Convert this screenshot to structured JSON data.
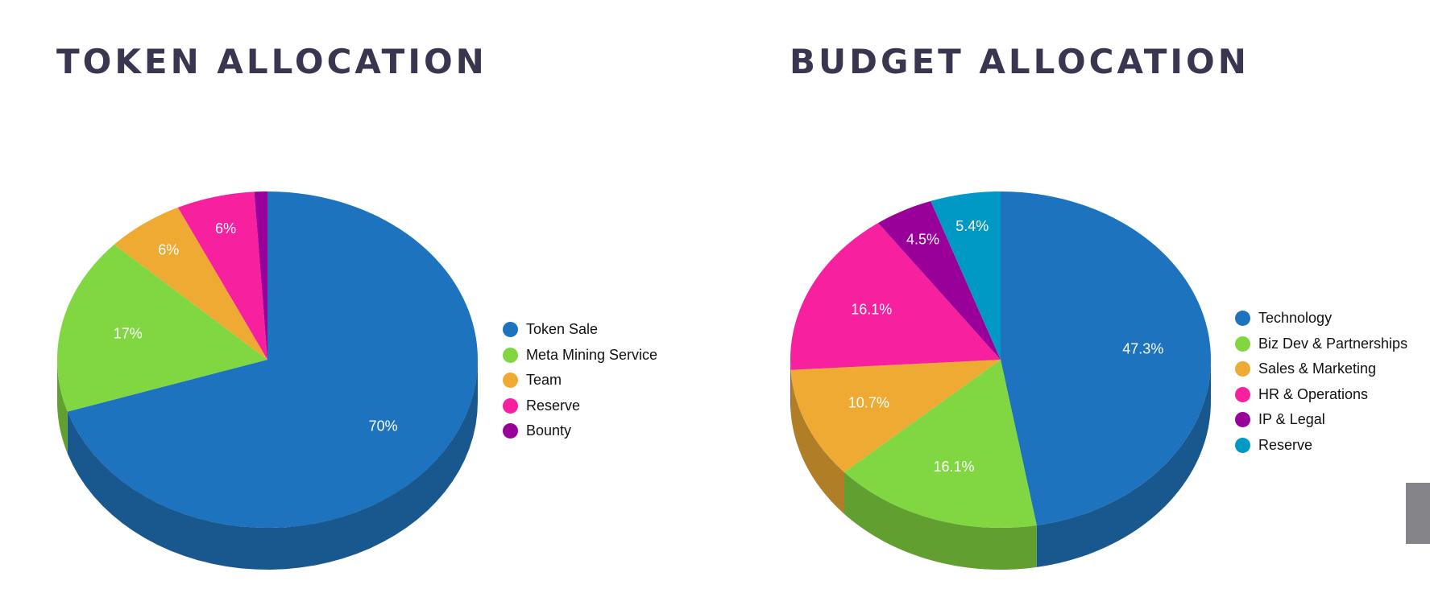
{
  "chart_data": [
    {
      "type": "pie",
      "title": "TOKEN ALLOCATION",
      "legend_position": "right",
      "categories": [
        "Token Sale",
        "Meta Mining Service",
        "Team",
        "Reserve",
        "Bounty"
      ],
      "values": [
        70,
        17,
        6,
        6,
        1
      ],
      "labels": [
        "70%",
        "17%",
        "6%",
        "6%",
        ""
      ],
      "colors": [
        "#1e73be",
        "#81d742",
        "#eeaa33",
        "#f7209f",
        "#990099"
      ],
      "side_colors": [
        "#19578f",
        "#61a030",
        "#b07e26",
        "#b8177a",
        "#700070"
      ]
    },
    {
      "type": "pie",
      "title": "BUDGET ALLOCATION",
      "legend_position": "right",
      "categories": [
        "Technology",
        "Biz Dev & Partnerships",
        "Sales & Marketing",
        "HR & Operations",
        "IP & Legal",
        "Reserve"
      ],
      "values": [
        47.3,
        16.1,
        10.7,
        16.1,
        4.5,
        5.4
      ],
      "labels": [
        "47.3%",
        "16.1%",
        "10.7%",
        "16.1%",
        "4.5%",
        "5.4%"
      ],
      "colors": [
        "#1e73be",
        "#81d742",
        "#eeaa33",
        "#f7209f",
        "#990099",
        "#0099c6"
      ],
      "side_colors": [
        "#19578f",
        "#61a030",
        "#b07e26",
        "#b8177a",
        "#700070",
        "#007596"
      ]
    }
  ]
}
